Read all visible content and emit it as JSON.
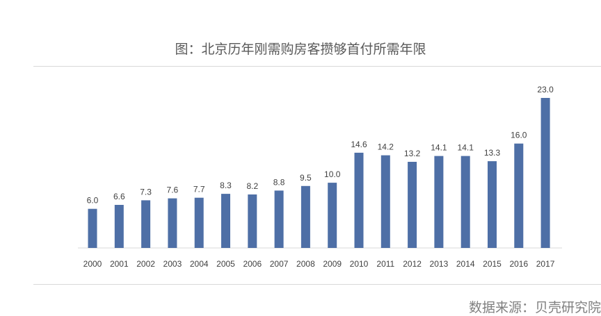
{
  "chart_data": {
    "type": "bar",
    "title": "图：北京历年刚需购房客攒够首付所需年限",
    "categories": [
      "2000",
      "2001",
      "2002",
      "2003",
      "2004",
      "2005",
      "2006",
      "2007",
      "2008",
      "2009",
      "2010",
      "2011",
      "2012",
      "2013",
      "2014",
      "2015",
      "2016",
      "2017"
    ],
    "values": [
      6.0,
      6.6,
      7.3,
      7.6,
      7.7,
      8.3,
      8.2,
      8.8,
      9.5,
      10.0,
      14.6,
      14.2,
      13.2,
      14.1,
      14.1,
      13.3,
      16.0,
      23.0
    ],
    "value_labels": [
      "6.0",
      "6.6",
      "7.3",
      "7.6",
      "7.7",
      "8.3",
      "8.2",
      "8.8",
      "9.5",
      "10.0",
      "14.6",
      "14.2",
      "13.2",
      "14.1",
      "14.1",
      "13.3",
      "16.0",
      "23.0"
    ],
    "xlabel": "",
    "ylabel": "",
    "ylim": [
      0,
      23
    ],
    "grid": false,
    "legend": "none",
    "bar_color": "#4e6fa6"
  },
  "source": "数据来源：贝壳研究院"
}
